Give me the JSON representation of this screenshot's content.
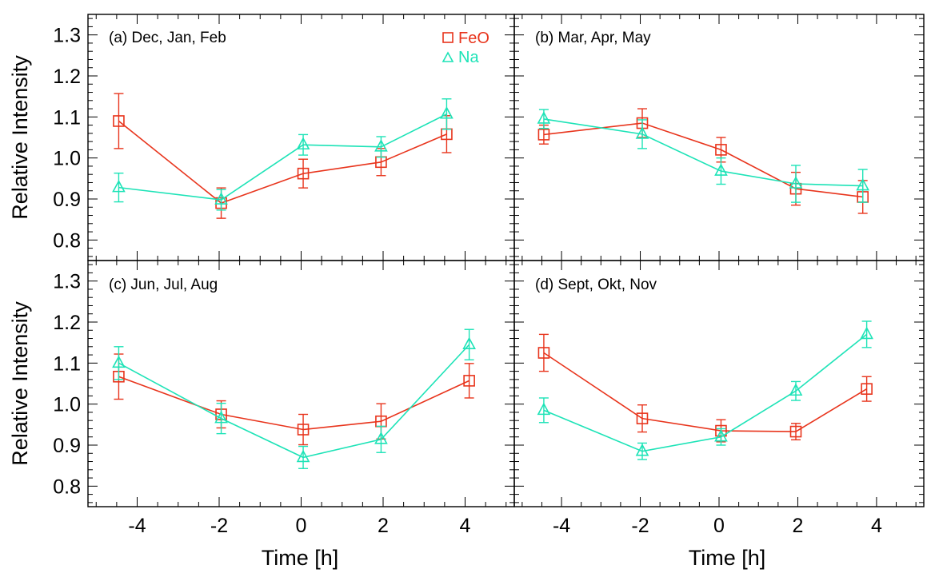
{
  "chart_data": {
    "type": "line",
    "ylabel": "Relative Intensity",
    "xlabel": "Time [h]",
    "xlim": [
      -5.2,
      5.2
    ],
    "ylim": [
      0.75,
      1.35
    ],
    "xticks": [
      -4,
      -2,
      0,
      2,
      4
    ],
    "xtick_labels": [
      "-4",
      "-2",
      "0",
      "2",
      "4"
    ],
    "yticks": [
      0.8,
      0.9,
      1.0,
      1.1,
      1.2,
      1.3
    ],
    "ytick_labels": [
      "0.8",
      "0.9",
      "1.0",
      "1.1",
      "1.2",
      "1.3"
    ],
    "grid": false,
    "legend": {
      "placement": "top-right of panel (a)",
      "entries": [
        "FeO",
        "Na"
      ]
    },
    "colors": {
      "FeO": "#e8341c",
      "Na": "#1de3b7"
    },
    "panels": [
      {
        "title": "(a) Dec, Jan, Feb",
        "series": [
          {
            "name": "FeO",
            "marker": "square",
            "x": [
              -4.45,
              -1.95,
              0.05,
              1.95,
              3.55
            ],
            "y": [
              1.09,
              0.89,
              0.962,
              0.99,
              1.058
            ],
            "err": [
              0.067,
              0.037,
              0.035,
              0.033,
              0.045
            ]
          },
          {
            "name": "Na",
            "marker": "triangle",
            "x": [
              -4.45,
              -1.95,
              0.05,
              1.95,
              3.55
            ],
            "y": [
              0.928,
              0.898,
              1.032,
              1.027,
              1.107
            ],
            "err": [
              0.035,
              0.025,
              0.025,
              0.025,
              0.037
            ]
          }
        ]
      },
      {
        "title": "(b) Mar, Apr, May",
        "series": [
          {
            "name": "FeO",
            "marker": "square",
            "x": [
              -4.45,
              -1.95,
              0.05,
              1.95,
              3.65
            ],
            "y": [
              1.057,
              1.085,
              1.02,
              0.925,
              0.905
            ],
            "err": [
              0.023,
              0.035,
              0.03,
              0.04,
              0.04
            ]
          },
          {
            "name": "Na",
            "marker": "triangle",
            "x": [
              -4.45,
              -1.95,
              0.05,
              1.95,
              3.65
            ],
            "y": [
              1.095,
              1.058,
              0.968,
              0.937,
              0.932
            ],
            "err": [
              0.023,
              0.035,
              0.032,
              0.045,
              0.04
            ]
          }
        ]
      },
      {
        "title": "(c) Jun, Jul, Aug",
        "series": [
          {
            "name": "FeO",
            "marker": "square",
            "x": [
              -4.45,
              -1.95,
              0.05,
              1.95,
              4.1
            ],
            "y": [
              1.067,
              0.975,
              0.938,
              0.958,
              1.057
            ],
            "err": [
              0.055,
              0.033,
              0.037,
              0.043,
              0.042
            ]
          },
          {
            "name": "Na",
            "marker": "triangle",
            "x": [
              -4.45,
              -1.95,
              0.05,
              1.95,
              4.1
            ],
            "y": [
              1.1,
              0.965,
              0.87,
              0.914,
              1.145
            ],
            "err": [
              0.04,
              0.037,
              0.027,
              0.032,
              0.037
            ]
          }
        ]
      },
      {
        "title": "(d) Sept, Okt, Nov",
        "series": [
          {
            "name": "FeO",
            "marker": "square",
            "x": [
              -4.45,
              -1.95,
              0.05,
              1.95,
              3.75
            ],
            "y": [
              1.125,
              0.965,
              0.935,
              0.933,
              1.037
            ],
            "err": [
              0.045,
              0.033,
              0.027,
              0.02,
              0.03
            ]
          },
          {
            "name": "Na",
            "marker": "triangle",
            "x": [
              -4.45,
              -1.95,
              0.05,
              1.95,
              3.75
            ],
            "y": [
              0.985,
              0.885,
              0.92,
              1.032,
              1.17
            ],
            "err": [
              0.03,
              0.02,
              0.02,
              0.023,
              0.032
            ]
          }
        ]
      }
    ]
  }
}
